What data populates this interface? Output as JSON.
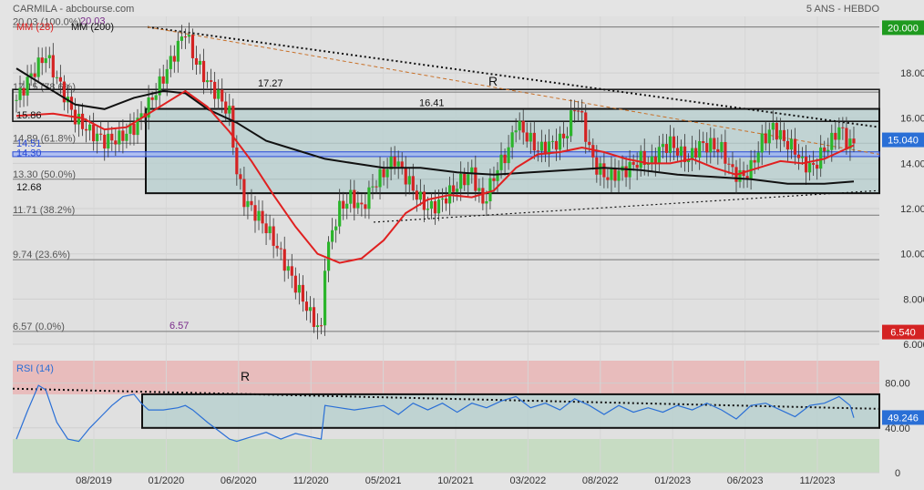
{
  "header": {
    "title": "CARMILA - abcbourse.com",
    "period": "5 ANS - HEBDO"
  },
  "legend": {
    "mm28": "MM (28)",
    "mm200": "MM (200)"
  },
  "colors": {
    "background": "#e4e4e4",
    "plot_bg": "#e0e0e0",
    "mm28": "#e02020",
    "mm200": "#111111",
    "rsi_line": "#2a6fd6",
    "box_fill": "#b9d0cf",
    "up": "#2bb52b",
    "down": "#d42323",
    "overbought": "#e8bcbc",
    "oversold": "#c7dcc3"
  },
  "chart_data": [
    {
      "type": "candlestick",
      "title": "CARMILA - abcbourse.com",
      "period": "5 ANS - HEBDO",
      "x_ticks": [
        "08/2019",
        "01/2020",
        "06/2020",
        "11/2020",
        "05/2021",
        "10/2021",
        "03/2022",
        "08/2022",
        "01/2023",
        "06/2023",
        "11/2023"
      ],
      "y_ticks": [
        "6.000",
        "8.000",
        "10.000",
        "12.000",
        "14.000",
        "16.000",
        "18.000"
      ],
      "ylim": [
        6.0,
        20.5
      ],
      "price_badges": {
        "high": "20.000",
        "last": "15.040",
        "low": "6.540"
      },
      "fibonacci": [
        {
          "label": "20.03  (100.0%)",
          "value": 20.03
        },
        {
          "label": "17.15  (78.6%)",
          "value": 17.15
        },
        {
          "label": "14.89  (61.8%)",
          "value": 14.89
        },
        {
          "label": "13.30  (50.0%)",
          "value": 13.3
        },
        {
          "label": "11.71  (38.2%)",
          "value": 11.71
        },
        {
          "label": "9.74  (23.6%)",
          "value": 9.74
        },
        {
          "label": "6.57  (0.0%)",
          "value": 6.57
        }
      ],
      "level_labels": [
        "15.86",
        "14.51",
        "14.30",
        "12.68",
        "17.27",
        "16.41",
        "20.03",
        "6.57"
      ],
      "annotations": [
        "R"
      ],
      "mm28_label": "MM (28)",
      "mm200_label": "MM (200)",
      "close_path": [
        [
          0,
          16.8
        ],
        [
          4,
          17.9
        ],
        [
          8,
          18.8
        ],
        [
          12,
          17.4
        ],
        [
          16,
          16.0
        ],
        [
          20,
          15.4
        ],
        [
          24,
          15.0
        ],
        [
          28,
          15.1
        ],
        [
          32,
          15.6
        ],
        [
          36,
          16.6
        ],
        [
          40,
          17.8
        ],
        [
          44,
          19.2
        ],
        [
          46,
          19.9
        ],
        [
          48,
          18.8
        ],
        [
          52,
          17.6
        ],
        [
          55,
          17.0
        ],
        [
          58,
          16.2
        ],
        [
          60,
          13.6
        ],
        [
          62,
          12.4
        ],
        [
          64,
          12.0
        ],
        [
          67,
          11.4
        ],
        [
          70,
          10.6
        ],
        [
          73,
          9.6
        ],
        [
          76,
          8.6
        ],
        [
          78,
          8.0
        ],
        [
          80,
          7.3
        ],
        [
          82,
          6.8
        ],
        [
          83,
          6.6
        ],
        [
          84,
          9.6
        ],
        [
          86,
          11.0
        ],
        [
          88,
          12.0
        ],
        [
          91,
          12.5
        ],
        [
          94,
          12.0
        ],
        [
          97,
          13.0
        ],
        [
          100,
          13.6
        ],
        [
          103,
          14.2
        ],
        [
          106,
          13.4
        ],
        [
          109,
          12.6
        ],
        [
          112,
          12.0
        ],
        [
          115,
          12.2
        ],
        [
          118,
          12.7
        ],
        [
          121,
          13.2
        ],
        [
          124,
          13.6
        ],
        [
          127,
          12.2
        ],
        [
          128,
          12.6
        ],
        [
          131,
          13.8
        ],
        [
          134,
          14.6
        ],
        [
          136,
          15.8
        ],
        [
          139,
          15.2
        ],
        [
          142,
          14.6
        ],
        [
          145,
          14.8
        ],
        [
          148,
          15.0
        ],
        [
          150,
          15.4
        ],
        [
          152,
          16.6
        ],
        [
          154,
          16.0
        ],
        [
          156,
          14.6
        ],
        [
          158,
          13.8
        ],
        [
          161,
          13.4
        ],
        [
          164,
          13.6
        ],
        [
          167,
          13.8
        ],
        [
          170,
          14.2
        ],
        [
          173,
          14.0
        ],
        [
          175,
          14.6
        ],
        [
          178,
          14.9
        ],
        [
          181,
          14.4
        ],
        [
          183,
          14.2
        ],
        [
          186,
          14.8
        ],
        [
          189,
          14.8
        ],
        [
          192,
          14.6
        ],
        [
          195,
          13.6
        ],
        [
          198,
          13.4
        ],
        [
          200,
          13.8
        ],
        [
          203,
          15.0
        ],
        [
          206,
          15.6
        ],
        [
          209,
          15.0
        ],
        [
          212,
          14.6
        ],
        [
          214,
          14.0
        ],
        [
          217,
          13.8
        ],
        [
          219,
          14.4
        ],
        [
          222,
          15.0
        ],
        [
          224,
          15.6
        ],
        [
          226,
          15.0
        ],
        [
          228,
          14.8
        ]
      ],
      "mm28_path": [
        [
          0,
          16.1
        ],
        [
          10,
          16.2
        ],
        [
          18,
          16.0
        ],
        [
          24,
          15.5
        ],
        [
          30,
          15.6
        ],
        [
          38,
          16.4
        ],
        [
          46,
          17.2
        ],
        [
          52,
          16.5
        ],
        [
          58,
          15.4
        ],
        [
          64,
          14.1
        ],
        [
          70,
          12.6
        ],
        [
          76,
          11.2
        ],
        [
          82,
          10.0
        ],
        [
          88,
          9.6
        ],
        [
          94,
          9.8
        ],
        [
          100,
          10.6
        ],
        [
          106,
          11.8
        ],
        [
          112,
          12.4
        ],
        [
          118,
          12.6
        ],
        [
          124,
          12.5
        ],
        [
          130,
          12.8
        ],
        [
          136,
          13.8
        ],
        [
          142,
          14.4
        ],
        [
          148,
          14.5
        ],
        [
          154,
          14.7
        ],
        [
          160,
          14.5
        ],
        [
          166,
          14.2
        ],
        [
          172,
          14.0
        ],
        [
          178,
          14.0
        ],
        [
          184,
          14.2
        ],
        [
          190,
          13.8
        ],
        [
          196,
          13.5
        ],
        [
          202,
          13.8
        ],
        [
          208,
          14.1
        ],
        [
          214,
          14.0
        ],
        [
          220,
          14.2
        ],
        [
          228,
          14.8
        ]
      ],
      "mm200_path": [
        [
          0,
          18.2
        ],
        [
          8,
          17.4
        ],
        [
          16,
          16.6
        ],
        [
          24,
          16.4
        ],
        [
          32,
          16.9
        ],
        [
          40,
          17.2
        ],
        [
          46,
          17.1
        ],
        [
          52,
          16.4
        ],
        [
          60,
          15.8
        ],
        [
          68,
          15.0
        ],
        [
          76,
          14.6
        ],
        [
          84,
          14.2
        ],
        [
          92,
          14.0
        ],
        [
          100,
          13.8
        ],
        [
          110,
          13.8
        ],
        [
          120,
          13.6
        ],
        [
          130,
          13.5
        ],
        [
          140,
          13.6
        ],
        [
          150,
          13.7
        ],
        [
          160,
          13.8
        ],
        [
          170,
          13.7
        ],
        [
          180,
          13.5
        ],
        [
          190,
          13.4
        ],
        [
          200,
          13.3
        ],
        [
          210,
          13.1
        ],
        [
          220,
          13.1
        ],
        [
          228,
          13.2
        ]
      ]
    },
    {
      "type": "line",
      "title": "RSI (14)",
      "ylim": [
        0,
        100
      ],
      "y_ticks": [
        "0",
        "40.00",
        "80.00"
      ],
      "overbought": 70,
      "oversold": 30,
      "last": "49.246",
      "annotations": [
        "R"
      ],
      "rsi_path": [
        [
          0,
          30
        ],
        [
          3,
          55
        ],
        [
          6,
          78
        ],
        [
          8,
          74
        ],
        [
          11,
          45
        ],
        [
          14,
          30
        ],
        [
          17,
          28
        ],
        [
          20,
          40
        ],
        [
          23,
          50
        ],
        [
          26,
          60
        ],
        [
          29,
          68
        ],
        [
          32,
          70
        ],
        [
          34,
          62
        ],
        [
          36,
          56
        ],
        [
          40,
          56
        ],
        [
          44,
          58
        ],
        [
          46,
          60
        ],
        [
          48,
          56
        ],
        [
          52,
          45
        ],
        [
          56,
          35
        ],
        [
          58,
          30
        ],
        [
          60,
          28
        ],
        [
          64,
          32
        ],
        [
          68,
          36
        ],
        [
          72,
          30
        ],
        [
          76,
          35
        ],
        [
          80,
          32
        ],
        [
          83,
          30
        ],
        [
          84,
          60
        ],
        [
          88,
          58
        ],
        [
          92,
          56
        ],
        [
          96,
          58
        ],
        [
          100,
          60
        ],
        [
          104,
          52
        ],
        [
          108,
          62
        ],
        [
          112,
          56
        ],
        [
          116,
          62
        ],
        [
          120,
          54
        ],
        [
          124,
          62
        ],
        [
          128,
          58
        ],
        [
          132,
          64
        ],
        [
          136,
          68
        ],
        [
          140,
          58
        ],
        [
          144,
          62
        ],
        [
          148,
          56
        ],
        [
          152,
          66
        ],
        [
          156,
          60
        ],
        [
          160,
          52
        ],
        [
          164,
          60
        ],
        [
          168,
          54
        ],
        [
          172,
          58
        ],
        [
          176,
          54
        ],
        [
          180,
          60
        ],
        [
          184,
          56
        ],
        [
          188,
          62
        ],
        [
          192,
          56
        ],
        [
          196,
          48
        ],
        [
          200,
          60
        ],
        [
          204,
          62
        ],
        [
          208,
          56
        ],
        [
          212,
          50
        ],
        [
          216,
          60
        ],
        [
          220,
          62
        ],
        [
          224,
          68
        ],
        [
          227,
          60
        ],
        [
          228,
          49
        ]
      ]
    }
  ]
}
